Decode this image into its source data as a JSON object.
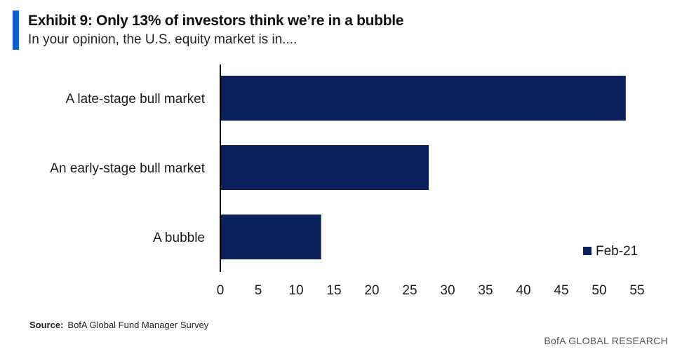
{
  "header": {
    "title": "Exhibit 9: Only 13% of investors think we’re in a bubble",
    "subtitle": "In your opinion, the U.S. equity market is in...."
  },
  "footer": {
    "source_label": "Source:",
    "source_text": "BofA Global Fund Manager Survey",
    "brand": "BofA GLOBAL RESEARCH"
  },
  "colors": {
    "accent": "#0a5fd8",
    "bar": "#0b1f5c",
    "axis": "#000000"
  },
  "chart_data": {
    "type": "bar",
    "orientation": "horizontal",
    "categories": [
      "A late-stage bull market",
      "An early-stage bull market",
      "A bubble"
    ],
    "series": [
      {
        "name": "Feb-21",
        "values": [
          53.5,
          27.5,
          13.3
        ]
      }
    ],
    "xlim": [
      0,
      55
    ],
    "xticks": [
      0,
      5,
      10,
      15,
      20,
      25,
      30,
      35,
      40,
      45,
      50,
      55
    ],
    "grid": false,
    "legend_position": "bottom-right"
  }
}
